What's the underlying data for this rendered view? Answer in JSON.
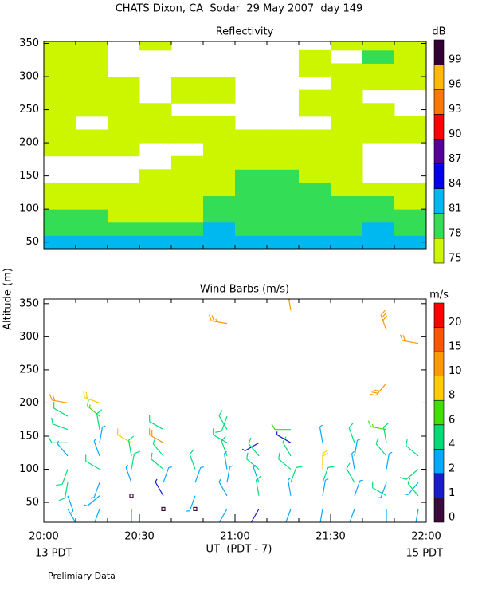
{
  "title": "CHATS Dixon, CA  Sodar  29 May 2007  day 149",
  "ylabel": "Altitude (m)",
  "xlabel": "UT  (PDT - 7)",
  "start_note": "13 PDT",
  "end_note": "15 PDT",
  "footer": "Prelimiary Data",
  "chart_data": [
    {
      "type": "contour",
      "title": "Reflectivity",
      "xlim": [
        0,
        120
      ],
      "ylim": [
        40,
        353
      ],
      "yticks": [
        50,
        100,
        150,
        200,
        250,
        300,
        350
      ],
      "minor_xticks": [
        0,
        10,
        20,
        30,
        40,
        50,
        60,
        70,
        80,
        90,
        100,
        110,
        120
      ],
      "x": [
        5,
        15,
        25,
        35,
        45,
        55,
        65,
        75,
        85,
        95,
        105,
        115
      ],
      "y": [
        50,
        70,
        90,
        110,
        130,
        150,
        170,
        190,
        210,
        230,
        250,
        270,
        290,
        310,
        330,
        350
      ],
      "z": [
        [
          82,
          82,
          82,
          82,
          82,
          82,
          82,
          82,
          82,
          82,
          82,
          82
        ],
        [
          79,
          79,
          79,
          79,
          79,
          82,
          79,
          79,
          79,
          79,
          82,
          79
        ],
        [
          79,
          79,
          76,
          76,
          76,
          79,
          79,
          79,
          79,
          79,
          79,
          79
        ],
        [
          76,
          76,
          76,
          76,
          76,
          79,
          79,
          79,
          79,
          79,
          79,
          76
        ],
        [
          76,
          76,
          76,
          76,
          76,
          76,
          79,
          79,
          79,
          76,
          76,
          76
        ],
        [
          null,
          null,
          null,
          76,
          76,
          76,
          79,
          79,
          76,
          76,
          null,
          null
        ],
        [
          null,
          null,
          null,
          null,
          76,
          76,
          76,
          76,
          76,
          76,
          null,
          null
        ],
        [
          76,
          76,
          76,
          null,
          null,
          76,
          76,
          76,
          76,
          76,
          null,
          null
        ],
        [
          76,
          76,
          76,
          76,
          76,
          76,
          76,
          76,
          76,
          76,
          76,
          76
        ],
        [
          76,
          null,
          76,
          76,
          76,
          76,
          null,
          null,
          null,
          76,
          76,
          76
        ],
        [
          76,
          76,
          76,
          76,
          null,
          null,
          null,
          null,
          76,
          76,
          76,
          null
        ],
        [
          76,
          76,
          76,
          null,
          76,
          76,
          null,
          null,
          76,
          76,
          null,
          null
        ],
        [
          76,
          76,
          76,
          null,
          76,
          76,
          null,
          null,
          null,
          76,
          76,
          76
        ],
        [
          76,
          76,
          null,
          null,
          null,
          null,
          null,
          null,
          76,
          76,
          76,
          76
        ],
        [
          76,
          76,
          null,
          null,
          null,
          null,
          null,
          null,
          76,
          null,
          79,
          76
        ],
        [
          76,
          76,
          null,
          76,
          null,
          null,
          null,
          null,
          null,
          76,
          76,
          76
        ]
      ],
      "colorbar": {
        "label": "dB",
        "levels": [
          75,
          78,
          81,
          84,
          87,
          90,
          93,
          96,
          99
        ],
        "colors": [
          "#ccf500",
          "#33dd55",
          "#00b8f0",
          "#0000ee",
          "#550099",
          "#ff0000",
          "#ff7700",
          "#ffbb00",
          "#330033"
        ]
      }
    },
    {
      "type": "barbs",
      "title": "Wind Barbs (m/s)",
      "xlim": [
        0,
        120
      ],
      "ylim": [
        20,
        357
      ],
      "yticks": [
        50,
        100,
        150,
        200,
        250,
        300,
        350
      ],
      "xticks": [
        {
          "value": 0,
          "label": "20:00"
        },
        {
          "value": 30,
          "label": "20:30"
        },
        {
          "value": 60,
          "label": "21:00"
        },
        {
          "value": 90,
          "label": "21:30"
        },
        {
          "value": 120,
          "label": "22:00"
        }
      ],
      "minor_xticks": [
        0,
        10,
        20,
        30,
        40,
        50,
        60,
        70,
        80,
        90,
        100,
        110,
        120
      ],
      "x": [
        7.5,
        7.5,
        7.5,
        7.5,
        7.5,
        7.5,
        7.5,
        7.5,
        7.5,
        17.5,
        17.5,
        17.5,
        17.5,
        17.5,
        17.5,
        17.5,
        17.5,
        17.5,
        27.5,
        27.5,
        27.5,
        27.5,
        27.5,
        27.5,
        37.5,
        37.5,
        37.5,
        37.5,
        37.5,
        37.5,
        37.5,
        47.5,
        47.5,
        47.5,
        47.5,
        57.5,
        57.5,
        57.5,
        57.5,
        57.5,
        57.5,
        57.5,
        57.5,
        57.5,
        67.5,
        67.5,
        67.5,
        67.5,
        67.5,
        67.5,
        77.5,
        77.5,
        77.5,
        77.5,
        77.5,
        77.5,
        77.5,
        77.5,
        87.5,
        87.5,
        87.5,
        87.5,
        87.5,
        97.5,
        97.5,
        97.5,
        97.5,
        97.5,
        97.5,
        107.5,
        107.5,
        107.5,
        107.5,
        107.5,
        107.5,
        107.5,
        107.5,
        107.5,
        117.5,
        117.5,
        117.5,
        117.5,
        117.5,
        117.5
      ],
      "y": [
        200,
        180,
        160,
        140,
        120,
        100,
        80,
        60,
        40,
        200,
        180,
        160,
        140,
        120,
        100,
        80,
        60,
        40,
        140,
        120,
        100,
        80,
        60,
        40,
        160,
        140,
        120,
        100,
        80,
        60,
        40,
        100,
        80,
        60,
        40,
        320,
        180,
        160,
        140,
        120,
        100,
        80,
        60,
        40,
        140,
        120,
        100,
        80,
        60,
        40,
        340,
        160,
        140,
        120,
        100,
        80,
        60,
        40,
        140,
        100,
        80,
        60,
        40,
        140,
        120,
        100,
        80,
        60,
        40,
        310,
        230,
        160,
        140,
        120,
        100,
        80,
        60,
        40,
        290,
        120,
        100,
        80,
        60,
        40
      ],
      "speed": [
        11,
        5,
        5,
        4,
        3,
        5,
        4,
        3,
        3,
        9,
        7,
        4,
        3,
        3,
        5,
        3,
        3,
        3,
        8,
        4,
        4,
        3,
        0.5,
        3,
        4,
        11,
        4,
        5,
        3,
        1.5,
        0.5,
        4,
        3,
        3,
        0.5,
        12,
        5,
        4,
        5,
        4,
        3,
        3,
        3,
        3,
        1.5,
        4,
        5,
        3,
        4,
        1.5,
        12,
        6,
        1.5,
        5,
        5,
        4,
        3,
        3,
        3,
        9,
        5,
        3,
        3,
        4,
        3,
        3,
        4,
        3,
        3,
        14,
        14,
        7,
        4,
        4,
        3,
        3,
        5,
        3,
        11,
        5,
        5,
        3,
        4,
        3
      ],
      "direction": [
        280,
        300,
        290,
        270,
        320,
        200,
        190,
        160,
        150,
        290,
        310,
        350,
        10,
        340,
        300,
        200,
        230,
        200,
        300,
        350,
        10,
        340,
        0,
        180,
        300,
        300,
        320,
        310,
        20,
        330,
        0,
        340,
        20,
        200,
        0,
        280,
        200,
        330,
        300,
        340,
        350,
        10,
        330,
        210,
        240,
        320,
        310,
        340,
        350,
        210,
        350,
        270,
        300,
        330,
        310,
        20,
        350,
        200,
        350,
        0,
        20,
        10,
        190,
        340,
        10,
        350,
        330,
        20,
        200,
        340,
        220,
        280,
        350,
        320,
        10,
        200,
        300,
        180,
        280,
        310,
        230,
        220,
        320,
        190
      ],
      "colorbar": {
        "label": "m/s",
        "levels": [
          0,
          1,
          2,
          4,
          6,
          8,
          10,
          15,
          20
        ],
        "colors": [
          "#3a0a3a",
          "#1a1ad0",
          "#00aaff",
          "#00dd77",
          "#44dd00",
          "#ffcc00",
          "#ff9900",
          "#ff5500",
          "#ff0000"
        ]
      }
    }
  ]
}
